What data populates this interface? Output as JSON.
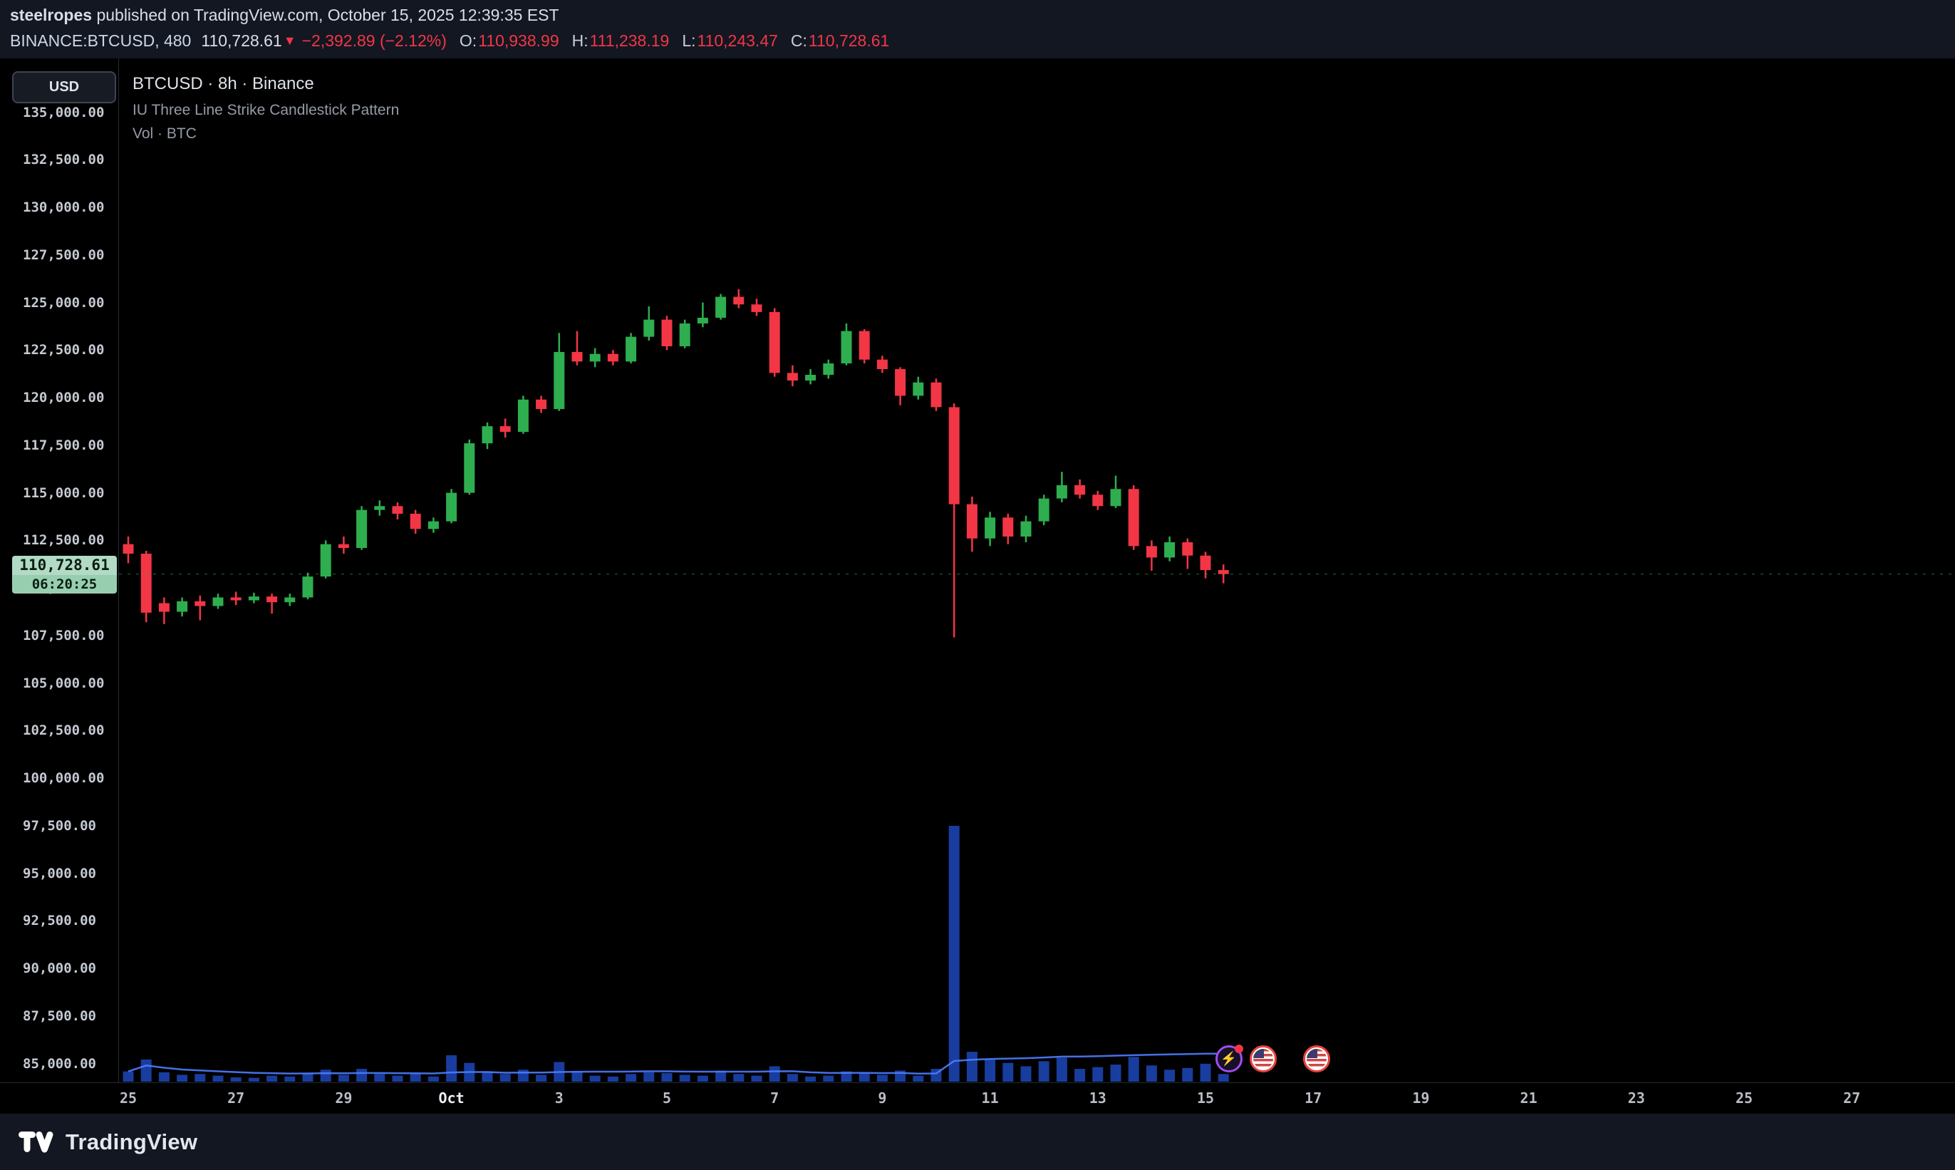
{
  "header": {
    "publisher": "steelropes",
    "published_suffix": " published on TradingView.com, October 15, 2025 12:39:35 EST",
    "symbol": "BINANCE:BTCUSD, 480",
    "last_price": "110,728.61",
    "arrow": "▼",
    "change": "−2,392.89 (−2.12%)",
    "ohlc": {
      "o_label": "O:",
      "o": "110,938.99",
      "h_label": "H:",
      "h": "111,238.19",
      "l_label": "L:",
      "l": "110,243.47",
      "c_label": "C:",
      "c": "110,728.61"
    }
  },
  "left_toolbar": {
    "currency_button": "USD"
  },
  "legend": {
    "title": "BTCUSD · 8h · Binance",
    "indicator": "IU Three Line Strike Candlestick Pattern",
    "volume": "Vol · BTC"
  },
  "price_tag": {
    "price": "110,728.61",
    "countdown": "06:20:25"
  },
  "footer": {
    "brand": "TradingView"
  },
  "colors": {
    "background": "#000000",
    "panel": "#131722",
    "up": "#2eae4f",
    "down": "#f23645",
    "volume": "#2962ff",
    "volume_ma": "#4d7dff",
    "axis_text": "#c5cad3",
    "text_dim": "#959aa6",
    "tag_bg": "#b2dac4",
    "tag_bg_dark": "#98ceb0",
    "tag_text": "#0a1d13"
  },
  "chart_data": {
    "type": "candlestick",
    "title": "BTCUSD · 8h · Binance",
    "interval_minutes": 480,
    "ohlcv_order": "open,high,low,close,volume_btc",
    "current_price": 110728.61,
    "volume_ma_period": 20,
    "volume_scale_max": 30000,
    "y_axis": {
      "max": 135000,
      "min": 85000,
      "step": 2500,
      "ticks": [
        "135,000.00",
        "132,500.00",
        "130,000.00",
        "127,500.00",
        "125,000.00",
        "122,500.00",
        "120,000.00",
        "117,500.00",
        "115,000.00",
        "112,500.00",
        "110,000.00",
        "107,500.00",
        "105,000.00",
        "102,500.00",
        "100,000.00",
        "97,500.00",
        "95,000.00",
        "92,500.00",
        "90,000.00",
        "87,500.00",
        "85,000.00"
      ]
    },
    "x_axis": {
      "tick_labels": [
        "25",
        "27",
        "29",
        "Oct",
        "3",
        "5",
        "7",
        "9",
        "11",
        "13",
        "15",
        "17",
        "19",
        "21",
        "23",
        "25",
        "27"
      ],
      "candles_per_tick": 6,
      "first_candle_date": "Sep 25"
    },
    "candles": [
      [
        112300,
        112700,
        111300,
        111800,
        1200
      ],
      [
        111800,
        111950,
        108200,
        108700,
        2600
      ],
      [
        109200,
        109500,
        108100,
        108750,
        1100
      ],
      [
        108750,
        109500,
        108500,
        109300,
        800
      ],
      [
        109300,
        109600,
        108300,
        109050,
        900
      ],
      [
        109050,
        109700,
        108900,
        109500,
        700
      ],
      [
        109500,
        109800,
        109100,
        109350,
        500
      ],
      [
        109350,
        109750,
        109200,
        109550,
        450
      ],
      [
        109550,
        109700,
        108650,
        109250,
        700
      ],
      [
        109250,
        109700,
        109050,
        109500,
        600
      ],
      [
        109500,
        110800,
        109400,
        110600,
        1000
      ],
      [
        110600,
        112500,
        110500,
        112300,
        1400
      ],
      [
        112300,
        112700,
        111800,
        112100,
        800
      ],
      [
        112100,
        114300,
        112000,
        114100,
        1500
      ],
      [
        114100,
        114600,
        113800,
        114300,
        900
      ],
      [
        114300,
        114500,
        113600,
        113900,
        700
      ],
      [
        113900,
        114100,
        112850,
        113100,
        900
      ],
      [
        113100,
        113700,
        112900,
        113500,
        600
      ],
      [
        113500,
        115200,
        113400,
        115000,
        3100
      ],
      [
        115000,
        117800,
        114900,
        117600,
        2200
      ],
      [
        117600,
        118700,
        117300,
        118500,
        1200
      ],
      [
        118500,
        118900,
        117900,
        118200,
        900
      ],
      [
        118200,
        120100,
        118100,
        119900,
        1400
      ],
      [
        119900,
        120100,
        119200,
        119400,
        800
      ],
      [
        119400,
        123400,
        119300,
        122400,
        2300
      ],
      [
        122400,
        123500,
        121700,
        121900,
        1200
      ],
      [
        121900,
        122600,
        121600,
        122300,
        700
      ],
      [
        122300,
        122500,
        121700,
        121900,
        600
      ],
      [
        121900,
        123400,
        121800,
        123200,
        900
      ],
      [
        123200,
        124800,
        123000,
        124100,
        1100
      ],
      [
        124100,
        124300,
        122500,
        122700,
        1000
      ],
      [
        122700,
        124100,
        122600,
        123900,
        800
      ],
      [
        123900,
        125000,
        123700,
        124200,
        700
      ],
      [
        124200,
        125450,
        124100,
        125300,
        1300
      ],
      [
        125300,
        125700,
        124700,
        124900,
        900
      ],
      [
        124900,
        125200,
        124300,
        124500,
        700
      ],
      [
        124500,
        124700,
        121100,
        121300,
        1800
      ],
      [
        121300,
        121700,
        120600,
        120900,
        900
      ],
      [
        120900,
        121500,
        120700,
        121200,
        600
      ],
      [
        121200,
        122000,
        121000,
        121800,
        700
      ],
      [
        121800,
        123900,
        121700,
        123500,
        1200
      ],
      [
        123500,
        123600,
        121800,
        122000,
        1000
      ],
      [
        122000,
        122200,
        121300,
        121500,
        800
      ],
      [
        121500,
        121600,
        119600,
        120100,
        1300
      ],
      [
        120100,
        121100,
        119900,
        120800,
        700
      ],
      [
        120800,
        121000,
        119300,
        119500,
        1500
      ],
      [
        119500,
        119700,
        107400,
        114400,
        30000
      ],
      [
        114400,
        114800,
        111900,
        112600,
        3500
      ],
      [
        112600,
        114000,
        112200,
        113700,
        2600
      ],
      [
        113700,
        113900,
        112300,
        112700,
        2200
      ],
      [
        112700,
        113800,
        112400,
        113500,
        1800
      ],
      [
        113500,
        114900,
        113300,
        114700,
        2400
      ],
      [
        114700,
        116100,
        114500,
        115400,
        2800
      ],
      [
        115400,
        115700,
        114700,
        114900,
        1500
      ],
      [
        114900,
        115100,
        114100,
        114300,
        1700
      ],
      [
        114300,
        115900,
        114200,
        115200,
        2000
      ],
      [
        115200,
        115400,
        112000,
        112200,
        2900
      ],
      [
        112200,
        112500,
        110900,
        111600,
        1900
      ],
      [
        111600,
        112700,
        111400,
        112400,
        1400
      ],
      [
        112400,
        112600,
        111000,
        111700,
        1600
      ],
      [
        111700,
        111900,
        110500,
        110940,
        2100
      ],
      [
        110938.99,
        111238.19,
        110243.47,
        110728.61,
        900
      ]
    ],
    "event_markers": [
      {
        "type": "ai-sparkle",
        "x_index": 61.3
      },
      {
        "type": "us-economic",
        "x_index": 63.2
      },
      {
        "type": "us-economic",
        "x_index": 66.2
      }
    ]
  }
}
